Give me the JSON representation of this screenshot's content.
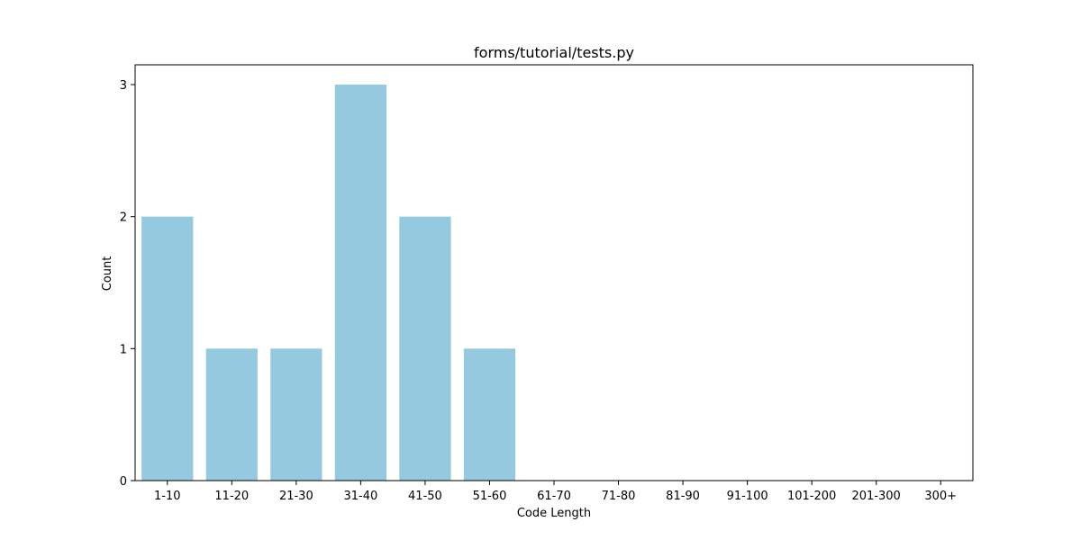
{
  "chart_data": {
    "type": "bar",
    "title": "forms/tutorial/tests.py",
    "xlabel": "Code Length",
    "ylabel": "Count",
    "categories": [
      "1-10",
      "11-20",
      "21-30",
      "31-40",
      "41-50",
      "51-60",
      "61-70",
      "71-80",
      "81-90",
      "91-100",
      "101-200",
      "201-300",
      "300+"
    ],
    "values": [
      2,
      1,
      1,
      3,
      2,
      1,
      0,
      0,
      0,
      0,
      0,
      0,
      0
    ],
    "ylim": [
      0,
      3.15
    ],
    "yticks": [
      0,
      1,
      2,
      3
    ],
    "grid": false,
    "legend": "none",
    "bar_color": "#95c9df"
  }
}
